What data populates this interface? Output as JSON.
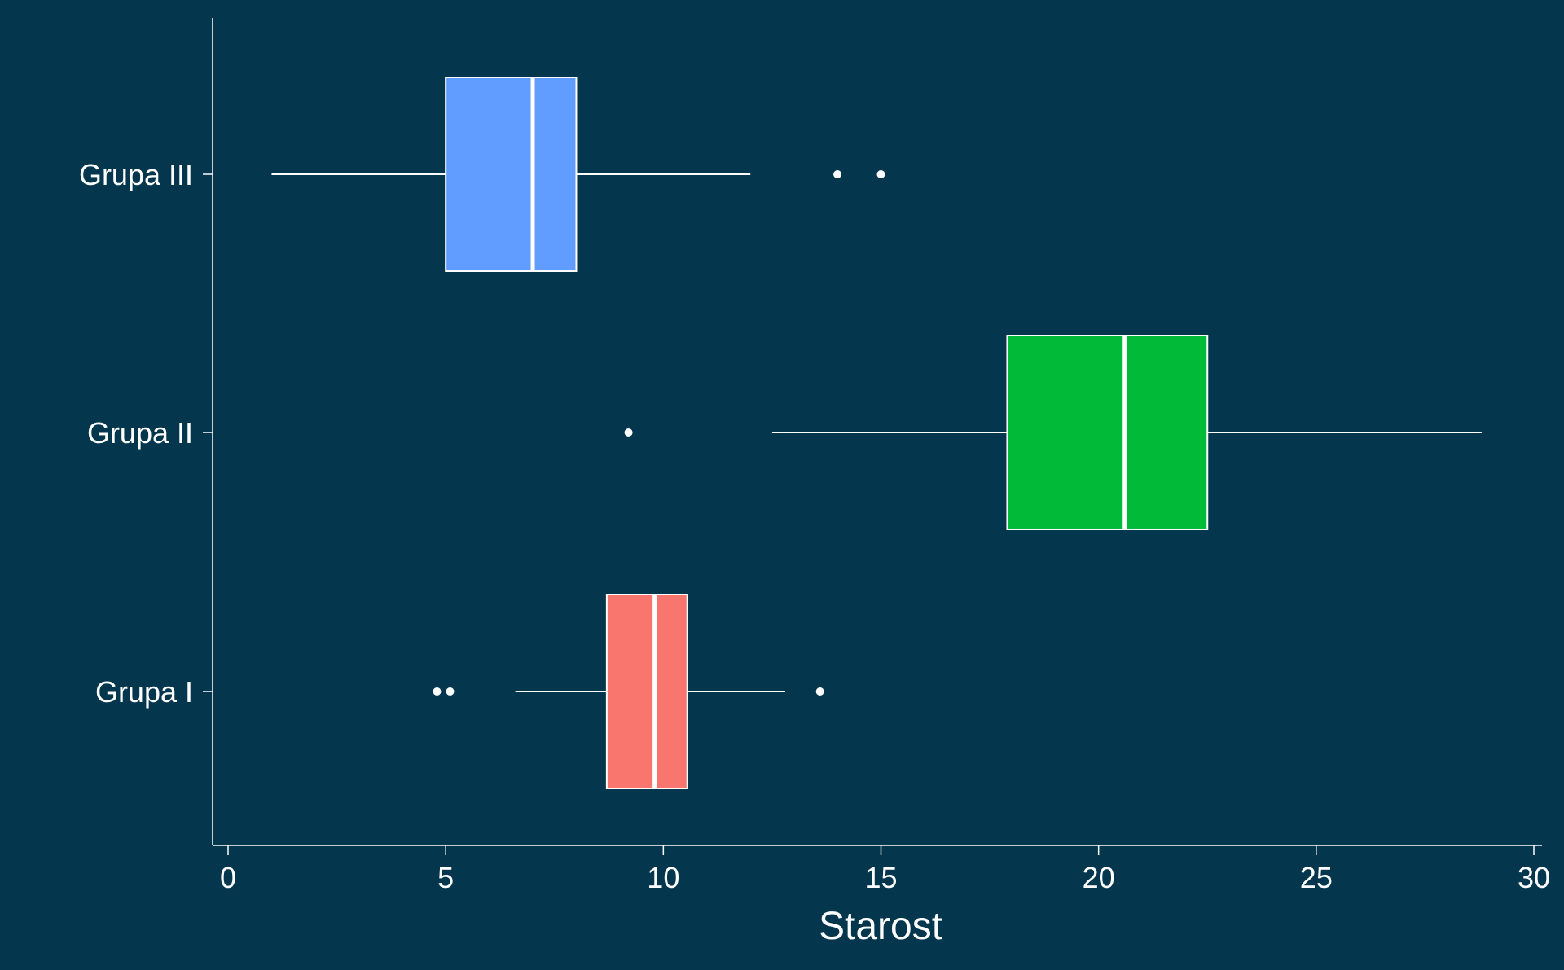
{
  "colors": {
    "background": "#04364d",
    "axis": "#ffffff",
    "box_outline": "#ffffff"
  },
  "chart_data": {
    "type": "boxplot",
    "orientation": "horizontal",
    "title": "",
    "xlabel": "Starost",
    "ylabel": "",
    "xlim": [
      0,
      30
    ],
    "xticks": [
      0,
      5,
      10,
      15,
      20,
      25,
      30
    ],
    "grid": false,
    "legend": "none",
    "categories": [
      "Grupa I",
      "Grupa II",
      "Grupa III"
    ],
    "boxes": [
      {
        "category": "Grupa I",
        "color": "#f8766d",
        "whisker_low": 6.6,
        "q1": 8.7,
        "median": 9.8,
        "q3": 10.55,
        "whisker_high": 12.8,
        "outliers": [
          4.8,
          5.1,
          13.6
        ]
      },
      {
        "category": "Grupa II",
        "color": "#00ba38",
        "whisker_low": 12.5,
        "q1": 17.9,
        "median": 20.6,
        "q3": 22.5,
        "whisker_high": 28.8,
        "outliers": [
          9.2
        ]
      },
      {
        "category": "Grupa III",
        "color": "#619cff",
        "whisker_low": 1.0,
        "q1": 5.0,
        "median": 7.0,
        "q3": 8.0,
        "whisker_high": 12.0,
        "outliers": [
          14.0,
          15.0
        ]
      }
    ]
  }
}
